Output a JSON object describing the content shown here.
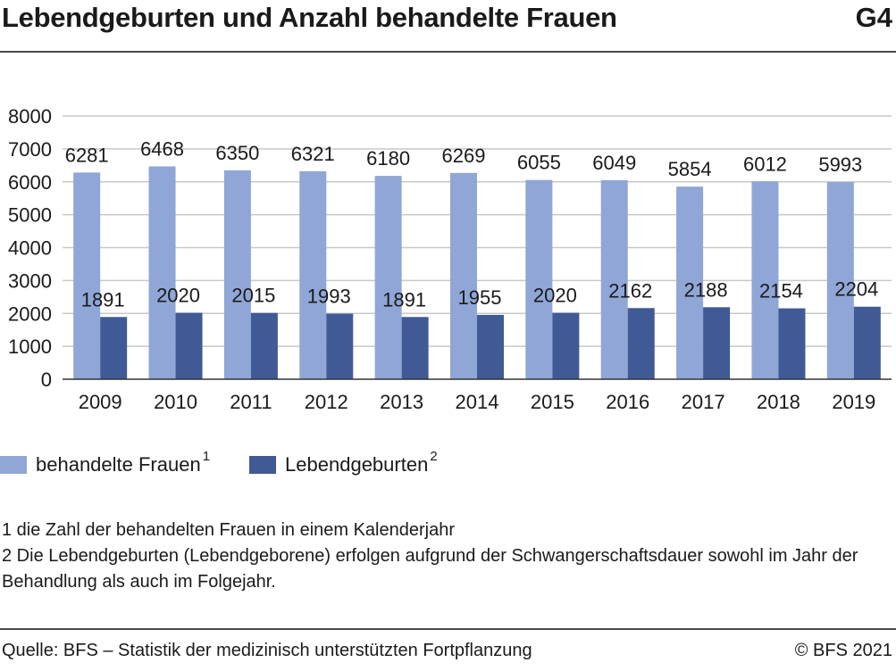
{
  "header": {
    "title": "Lebendgeburten und Anzahl behandelte Frauen",
    "figure_id": "G4"
  },
  "colors": {
    "behandelte_frauen": "#8fa6d6",
    "lebendgeburten": "#3f5a94",
    "grid": "#c8c8c8",
    "axis": "#333333"
  },
  "legend": {
    "items": [
      {
        "label": "behandelte Frauen",
        "sup": "1",
        "color_key": "behandelte_frauen"
      },
      {
        "label": "Lebendgeburten",
        "sup": "2",
        "color_key": "lebendgeburten"
      }
    ]
  },
  "footnotes": [
    "1 die Zahl der behandelten Frauen in einem Kalenderjahr",
    "2 Die Lebendgeburten (Lebendgeborene) erfolgen aufgrund der Schwangerschaftsdauer sowohl im Jahr der Behandlung als auch im Folgejahr."
  ],
  "footer": {
    "source": "Quelle: BFS – Statistik der medizinisch unterstützten Fortpflanzung",
    "copyright": "© BFS 2021"
  },
  "chart_data": {
    "type": "bar",
    "categories": [
      "2009",
      "2010",
      "2011",
      "2012",
      "2013",
      "2014",
      "2015",
      "2016",
      "2017",
      "2018",
      "2019"
    ],
    "series": [
      {
        "name": "behandelte Frauen",
        "values": [
          6281,
          6468,
          6350,
          6321,
          6180,
          6269,
          6055,
          6049,
          5854,
          6012,
          5993
        ]
      },
      {
        "name": "Lebendgeburten",
        "values": [
          1891,
          2020,
          2015,
          1993,
          1891,
          1955,
          2020,
          2162,
          2188,
          2154,
          2204
        ]
      }
    ],
    "ylim": [
      0,
      8000
    ],
    "yticks": [
      0,
      1000,
      2000,
      3000,
      4000,
      5000,
      6000,
      7000,
      8000
    ],
    "grid": true,
    "legend_position": "bottom-left",
    "data_labels": true
  }
}
